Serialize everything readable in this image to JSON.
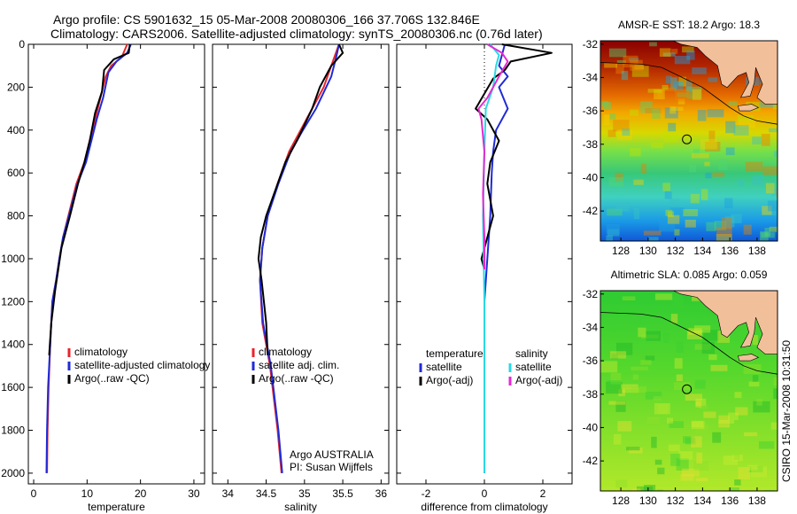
{
  "header": {
    "line1": "Argo profile: CS 5901632_15 05-Mar-2008 20080306_166 37.706S 132.846E",
    "line2": "Climatology: CARS2006. Satellite-adjusted climatology: synTS_20080306.nc (0.76d later)"
  },
  "credit": "CSIRO 15-Mar-2008 10:31:50",
  "colors": {
    "climatology": "#e8242b",
    "satellite": "#1f2bd6",
    "argo": "#000000",
    "sat_salinity": "#29d9e6",
    "argo_salinity": "#e52ad0",
    "land": "#f2bf9b"
  },
  "chart_data": [
    {
      "type": "line",
      "panel": "temperature",
      "xlabel": "temperature",
      "ylabel": "",
      "xlim": [
        -1,
        32
      ],
      "ylim": [
        2050,
        0
      ],
      "xticks": [
        0,
        10,
        20,
        30
      ],
      "yticks": [
        0,
        200,
        400,
        600,
        800,
        1000,
        1200,
        1400,
        1600,
        1800,
        2000
      ],
      "legend": [
        "climatology",
        "satellite-adjusted climatology",
        "Argo(..raw -QC)"
      ],
      "legend_placement": "lower-right",
      "series": [
        {
          "name": "climatology",
          "color_key": "climatology",
          "x": [
            17.5,
            16.5,
            14.5,
            13.5,
            12.5,
            11.5,
            10.5,
            9.5,
            8.0,
            6.5,
            5.5,
            4.8,
            4.2,
            3.5,
            3.1,
            2.8,
            2.6,
            2.5
          ],
          "y": [
            0,
            60,
            100,
            150,
            250,
            350,
            450,
            550,
            650,
            800,
            900,
            1000,
            1100,
            1200,
            1400,
            1600,
            1800,
            2000
          ]
        },
        {
          "name": "satellite-adjusted climatology",
          "color_key": "satellite",
          "x": [
            18.2,
            17.5,
            15.5,
            14.0,
            13.0,
            11.8,
            10.8,
            9.8,
            8.2,
            6.6,
            5.5,
            4.8,
            4.2,
            3.5,
            3.1,
            2.7,
            2.5,
            2.4
          ],
          "y": [
            0,
            40,
            80,
            130,
            250,
            350,
            450,
            550,
            650,
            800,
            900,
            1000,
            1100,
            1200,
            1400,
            1600,
            1800,
            2000
          ]
        },
        {
          "name": "Argo(..raw -QC)",
          "color_key": "argo",
          "x": [
            18.0,
            17.8,
            15.0,
            13.2,
            12.8,
            11.5,
            10.5,
            9.5,
            8.3,
            6.8,
            5.2,
            4.6,
            4.0,
            3.3,
            2.9
          ],
          "y": [
            0,
            40,
            70,
            120,
            220,
            320,
            450,
            550,
            650,
            800,
            950,
            1050,
            1150,
            1300,
            1450
          ]
        }
      ]
    },
    {
      "type": "line",
      "panel": "salinity",
      "xlabel": "salinity",
      "ylabel": "",
      "xlim": [
        33.8,
        36.1
      ],
      "ylim": [
        2050,
        0
      ],
      "xticks": [
        34,
        34.5,
        35,
        35.5,
        36
      ],
      "legend": [
        "climatology",
        "satellite adj. clim.",
        "Argo(..raw -QC)"
      ],
      "legend_placement": "lower-right",
      "annotations": [
        "Argo AUSTRALIA",
        "PI: Susan Wijffels"
      ],
      "series": [
        {
          "name": "climatology",
          "color_key": "climatology",
          "x": [
            35.45,
            35.35,
            35.25,
            35.1,
            34.95,
            34.8,
            34.65,
            34.52,
            34.45,
            34.42,
            34.45,
            34.55,
            34.65,
            34.7
          ],
          "y": [
            0,
            100,
            200,
            300,
            400,
            500,
            650,
            800,
            950,
            1100,
            1300,
            1500,
            1800,
            2000
          ]
        },
        {
          "name": "satellite adj. clim.",
          "color_key": "satellite",
          "x": [
            35.45,
            35.42,
            35.35,
            35.15,
            34.98,
            34.82,
            34.66,
            34.52,
            34.45,
            34.42,
            34.46,
            34.56,
            34.66,
            34.71
          ],
          "y": [
            0,
            50,
            150,
            300,
            400,
            500,
            650,
            800,
            950,
            1100,
            1300,
            1500,
            1800,
            2000
          ]
        },
        {
          "name": "Argo(..raw -QC)",
          "color_key": "argo",
          "x": [
            35.45,
            35.5,
            35.35,
            35.2,
            35.1,
            34.9,
            34.75,
            34.6,
            34.5,
            34.43,
            34.4,
            34.44,
            34.5,
            34.52
          ],
          "y": [
            0,
            40,
            100,
            200,
            300,
            450,
            550,
            700,
            800,
            900,
            1000,
            1100,
            1300,
            1450
          ]
        }
      ]
    },
    {
      "type": "line",
      "panel": "difference",
      "xlabel": "difference from climatology",
      "ylabel": "",
      "xlim": [
        -3,
        3
      ],
      "ylim": [
        2050,
        0
      ],
      "xticks": [
        -2,
        0,
        2
      ],
      "legend_groups": [
        {
          "title": "temperature",
          "items": [
            "satellite",
            "Argo(-adj)"
          ]
        },
        {
          "title": "salinity",
          "items": [
            "satellite",
            "Argo(-adj)"
          ]
        }
      ],
      "legend_placement": "lower-center",
      "series": [
        {
          "name": "satellite",
          "group": "temperature",
          "color_key": "satellite",
          "x": [
            0.7,
            0.6,
            0.5,
            0.8,
            0.5,
            0.8,
            0.4,
            0.3,
            0.25,
            0.2,
            0.1,
            0.0,
            0.0
          ],
          "y": [
            0,
            50,
            100,
            150,
            200,
            300,
            400,
            500,
            600,
            800,
            1000,
            1200,
            2000
          ]
        },
        {
          "name": "Argo(-adj)",
          "group": "temperature",
          "color_key": "argo",
          "x": [
            0.6,
            2.3,
            0.9,
            0.7,
            0.3,
            -0.3,
            0.1,
            0.5,
            0.2,
            0.1,
            0.3,
            0.1,
            -0.1,
            0.0
          ],
          "y": [
            0,
            40,
            80,
            120,
            160,
            300,
            350,
            450,
            550,
            650,
            800,
            900,
            1000,
            1050
          ]
        },
        {
          "name": "satellite",
          "group": "salinity",
          "color_key": "sat_salinity",
          "x": [
            0.2,
            0.5,
            0.4,
            0.3,
            0.05,
            0.0,
            -0.05,
            0.0,
            0.0
          ],
          "y": [
            0,
            50,
            100,
            200,
            300,
            500,
            800,
            1200,
            2000
          ]
        },
        {
          "name": "Argo(-adj)",
          "group": "salinity",
          "color_key": "argo_salinity",
          "x": [
            0.1,
            0.6,
            0.8,
            0.5,
            0.1,
            -0.2,
            -0.1,
            0.0,
            -0.05,
            0.0,
            0.0
          ],
          "y": [
            0,
            40,
            80,
            150,
            250,
            300,
            350,
            500,
            700,
            900,
            1050
          ]
        }
      ]
    },
    {
      "type": "heatmap",
      "panel": "sst-map",
      "title": "AMSR-E SST: 18.2  Argo: 18.3",
      "xlim": [
        126.5,
        139.5
      ],
      "ylim": [
        -43.8,
        -31.8
      ],
      "xticks": [
        128,
        130,
        132,
        134,
        136,
        138
      ],
      "yticks": [
        -32,
        -34,
        -36,
        -38,
        -40,
        -42
      ],
      "marker": {
        "lon": 132.846,
        "lat": -37.706
      }
    },
    {
      "type": "heatmap",
      "panel": "sla-map",
      "title": "Altimetric SLA: 0.085  Argo: 0.059",
      "xlim": [
        126.5,
        139.5
      ],
      "ylim": [
        -43.8,
        -31.8
      ],
      "xticks": [
        128,
        130,
        132,
        134,
        136,
        138
      ],
      "yticks": [
        -32,
        -34,
        -36,
        -38,
        -40,
        -42
      ],
      "marker": {
        "lon": 132.846,
        "lat": -37.706
      }
    }
  ]
}
